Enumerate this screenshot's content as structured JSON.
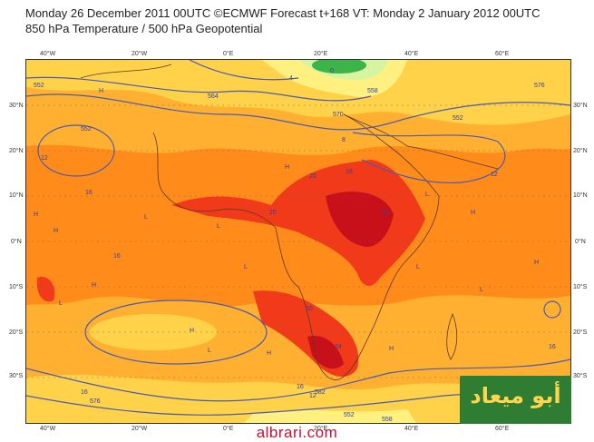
{
  "header": {
    "line1": "Monday 26 December 2011 00UTC ©ECMWF Forecast t+168 VT: Monday 2 January 2012 00UTC",
    "line2": "850 hPa Temperature / 500 hPa Geopotential"
  },
  "axes": {
    "lon_top": [
      "40°W",
      "20°W",
      "0°E",
      "20°E",
      "40°E",
      "60°E"
    ],
    "lon_bottom": [
      "40°W",
      "20°W",
      "0°E",
      "20°E",
      "40°E",
      "60°E"
    ],
    "lat_left": [
      "30°N",
      "20°N",
      "10°N",
      "0°N",
      "10°S",
      "20°S",
      "30°S"
    ],
    "lat_right": [
      "30°N",
      "20°N",
      "10°N",
      "0°N",
      "10°S",
      "20°S",
      "30°S"
    ]
  },
  "contour_labels": [
    "552",
    "570",
    "558",
    "552",
    "576",
    "582",
    "552",
    "564",
    "552",
    "558",
    "576"
  ],
  "temp_labels": [
    "12",
    "16",
    "16",
    "20",
    "16",
    "20",
    "24",
    "12",
    "20",
    "24",
    "16",
    "12",
    "8",
    "4",
    "0",
    "16",
    "16"
  ],
  "pressure_centres": [
    "H",
    "H",
    "H",
    "H",
    "L",
    "L",
    "L",
    "H",
    "H",
    "L",
    "L",
    "H",
    "H",
    "L",
    "L",
    "H",
    "H",
    "L"
  ],
  "palette": {
    "t0": "#d7f5a0",
    "t4": "#fff080",
    "t8": "#ffd24a",
    "t12": "#ffb030",
    "t16": "#ff8c1a",
    "t20": "#f03a1a",
    "t24": "#c8101a",
    "cold": "#3cb44a",
    "contour": "#4a5bb0",
    "coast": "#5a3a2a"
  },
  "watermark": {
    "url": "albrari.com",
    "logo_text": "أبو ميعاد"
  }
}
